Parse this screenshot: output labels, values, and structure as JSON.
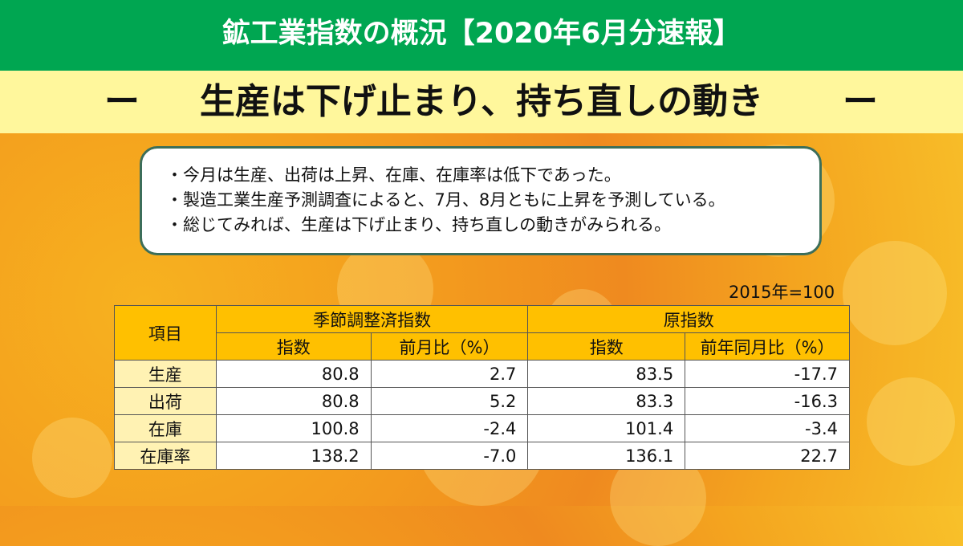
{
  "title": "鉱工業指数の概況【2020年6月分速報】",
  "subtitle": {
    "dash": "ー",
    "text": "生産は下げ止まり、持ち直しの動き"
  },
  "summary": [
    "・今月は生産、出荷は上昇、在庫、在庫率は低下であった。",
    "・製造工業生産予測調査によると、7月、8月ともに上昇を予測している。",
    "・総じてみれば、生産は下げ止まり、持ち直しの動きがみられる。"
  ],
  "unit_note": "2015年=100",
  "table": {
    "item_header": "項目",
    "group_seasonal": "季節調整済指数",
    "group_original": "原指数",
    "sub_index": "指数",
    "sub_mom": "前月比（%）",
    "sub_index2": "指数",
    "sub_yoy": "前年同月比（%）",
    "rows": [
      {
        "label": "生産",
        "sa_index": "80.8",
        "sa_mom": "2.7",
        "orig_index": "83.5",
        "orig_yoy": "-17.7"
      },
      {
        "label": "出荷",
        "sa_index": "80.8",
        "sa_mom": "5.2",
        "orig_index": "83.3",
        "orig_yoy": "-16.3"
      },
      {
        "label": "在庫",
        "sa_index": "100.8",
        "sa_mom": "-2.4",
        "orig_index": "101.4",
        "orig_yoy": "-3.4"
      },
      {
        "label": "在庫率",
        "sa_index": "138.2",
        "sa_mom": "-7.0",
        "orig_index": "136.1",
        "orig_yoy": "22.7"
      }
    ]
  },
  "colors": {
    "title_bg": "#00a651",
    "subtitle_bg": "#fff79c",
    "header_bg": "#ffc000",
    "rowlabel_bg": "#fff2b3",
    "box_border": "#3c6e5a"
  }
}
